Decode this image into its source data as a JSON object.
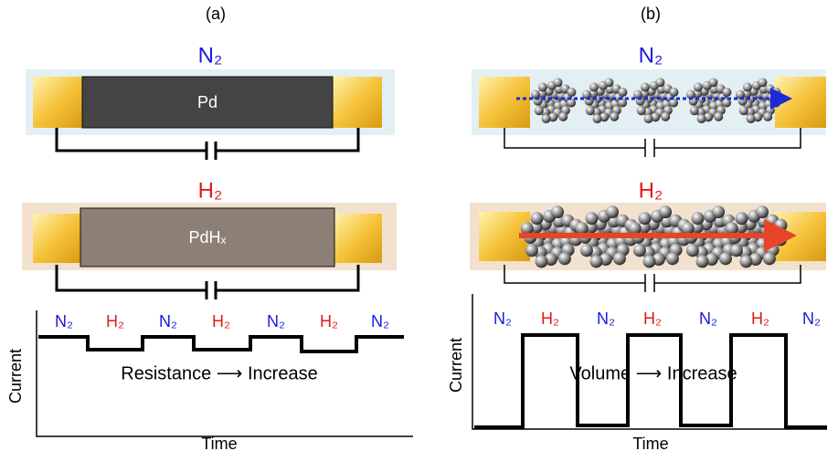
{
  "panel_a": {
    "label": "(a)",
    "top_gas": "N₂",
    "top_film": "Pd",
    "bottom_gas": "H₂",
    "bottom_film": "PdHₓ",
    "sequence": [
      "N₂",
      "H₂",
      "N₂",
      "H₂",
      "N₂",
      "H₂",
      "N₂"
    ],
    "y_axis": "Current",
    "x_axis": "Time",
    "caption": "Resistance ⟶ Increase"
  },
  "panel_b": {
    "label": "(b)",
    "top_gas": "N₂",
    "bottom_gas": "H₂",
    "sequence": [
      "N₂",
      "H₂",
      "N₂",
      "H₂",
      "N₂",
      "H₂",
      "N₂"
    ],
    "y_axis": "Current",
    "x_axis": "Time",
    "caption": "Volume ⟶ Increase"
  }
}
